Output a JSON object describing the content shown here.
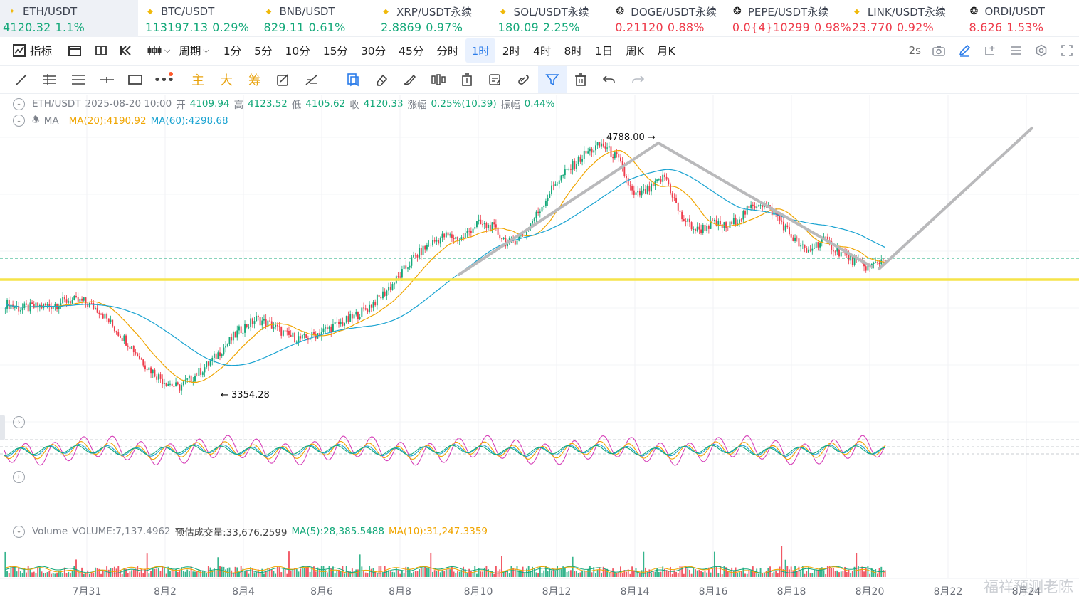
{
  "tickers": [
    {
      "name": "ETH/USDT",
      "price": "4120.32",
      "change": "1.1%",
      "dir": "up",
      "icon": "sparkle-icon",
      "active": true
    },
    {
      "name": "BTC/USDT",
      "price": "113197.13",
      "change": "0.29%",
      "dir": "up",
      "icon": "diamond-icon"
    },
    {
      "name": "BNB/USDT",
      "price": "829.11",
      "change": "0.61%",
      "dir": "up",
      "icon": "diamond-icon"
    },
    {
      "name": "XRP/USDT永续",
      "price": "2.8869",
      "change": "0.97%",
      "dir": "up",
      "icon": "diamond-icon"
    },
    {
      "name": "SOL/USDT永续",
      "price": "180.09",
      "change": "2.25%",
      "dir": "up",
      "icon": "diamond-icon"
    },
    {
      "name": "DOGE/USDT永续",
      "price": "0.21120",
      "change": "0.88%",
      "dir": "down",
      "icon": "coin-icon"
    },
    {
      "name": "PEPE/USDT永续",
      "price": "0.0{4}10299",
      "change": "0.98%",
      "dir": "down",
      "icon": "coin-icon"
    },
    {
      "name": "LINK/USDT永续",
      "price": "23.770",
      "change": "0.92%",
      "dir": "down",
      "icon": "diamond-icon"
    },
    {
      "name": "ORDI/USDT",
      "price": "8.626",
      "change": "1.53%",
      "dir": "down",
      "icon": "coin-icon"
    }
  ],
  "periodbar": {
    "indicator_label": "指标",
    "period_label": "周期",
    "periods": [
      "1分",
      "5分",
      "10分",
      "15分",
      "30分",
      "45分",
      "分时",
      "1时",
      "2时",
      "4时",
      "8时",
      "1日",
      "周K",
      "月K"
    ],
    "selected": "1时",
    "refresh": "2s"
  },
  "drawbar": {
    "main_label": "主",
    "big_label": "大",
    "chip_label": "筹"
  },
  "info": {
    "symbol": "ETH/USDT",
    "datetime": "2025-08-20 10:00",
    "open_label": "开",
    "open": "4109.94",
    "high_label": "高",
    "high": "4123.52",
    "low_label": "低",
    "low": "4105.62",
    "close_label": "收",
    "close": "4120.33",
    "change_label": "涨幅",
    "change": "0.25%(10.39)",
    "amp_label": "振幅",
    "amp": "0.44%",
    "ma_label": "MA",
    "ma20": "MA(20):4190.92",
    "ma60": "MA(60):4298.68"
  },
  "volume_info": {
    "label": "Volume",
    "volume": "VOLUME:7,137.4962",
    "est": "预估成交量:33,676.2599",
    "ma5": "MA(5):28,385.5488",
    "ma10": "MA(10):31,247.3359"
  },
  "chart_data": {
    "type": "candlestick",
    "interval": "1时",
    "x_ticks": [
      "7月31",
      "8月2",
      "8月4",
      "8月6",
      "8月8",
      "8月10",
      "8月12",
      "8月14",
      "8月16",
      "8月18",
      "8月20",
      "8月22",
      "8月24"
    ],
    "high_marker": "4788.00",
    "low_marker": "3354.28",
    "close_series": [
      3850,
      3820,
      3830,
      3840,
      3870,
      3860,
      3810,
      3700,
      3600,
      3480,
      3400,
      3354,
      3420,
      3500,
      3600,
      3700,
      3760,
      3720,
      3660,
      3640,
      3680,
      3720,
      3760,
      3820,
      3900,
      4000,
      4120,
      4200,
      4250,
      4230,
      4320,
      4300,
      4200,
      4260,
      4400,
      4560,
      4650,
      4740,
      4788,
      4700,
      4480,
      4520,
      4600,
      4360,
      4280,
      4320,
      4300,
      4380,
      4450,
      4380,
      4250,
      4150,
      4230,
      4160,
      4100,
      4060,
      4120
    ],
    "colors": {
      "up": "#13a879",
      "down": "#ee3b4a",
      "ma20": "#f0a500",
      "ma60": "#1aa3d1",
      "support": "#f5e44a",
      "trend": "#b9b9bb"
    }
  },
  "watermark": "福祥预测老陈"
}
